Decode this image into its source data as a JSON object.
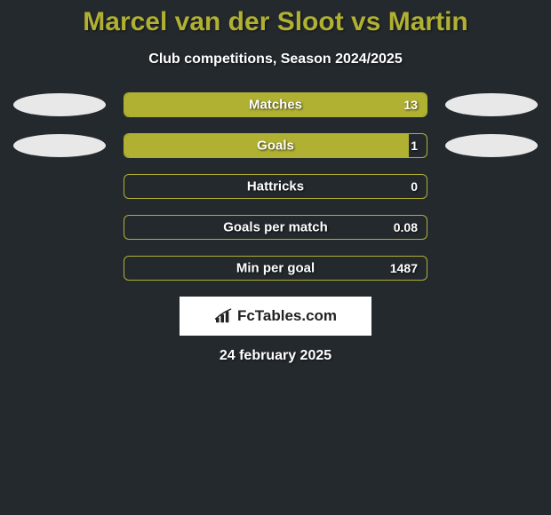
{
  "title": "Marcel van der Sloot vs Martin",
  "subtitle": "Club competitions, Season 2024/2025",
  "colors": {
    "background": "#24292e",
    "accent": "#b0b032",
    "text": "#ffffff",
    "ellipse": "#e8e8e8",
    "logo_box": "#ffffff",
    "logo_text": "#222222"
  },
  "bars": [
    {
      "label": "Matches",
      "value": "13",
      "fill_pct": 100,
      "left_ellipse": true,
      "right_ellipse": true
    },
    {
      "label": "Goals",
      "value": "1",
      "fill_pct": 94,
      "left_ellipse": true,
      "right_ellipse": true
    },
    {
      "label": "Hattricks",
      "value": "0",
      "fill_pct": 0,
      "left_ellipse": false,
      "right_ellipse": false
    },
    {
      "label": "Goals per match",
      "value": "0.08",
      "fill_pct": 0,
      "left_ellipse": false,
      "right_ellipse": false
    },
    {
      "label": "Min per goal",
      "value": "1487",
      "fill_pct": 0,
      "left_ellipse": false,
      "right_ellipse": false
    }
  ],
  "bar_styling": {
    "outer_width": 342,
    "outer_height": 28,
    "border_radius": 6,
    "label_fontsize": 15,
    "value_fontsize": 14
  },
  "logo": {
    "text": "FcTables.com"
  },
  "date": "24 february 2025"
}
